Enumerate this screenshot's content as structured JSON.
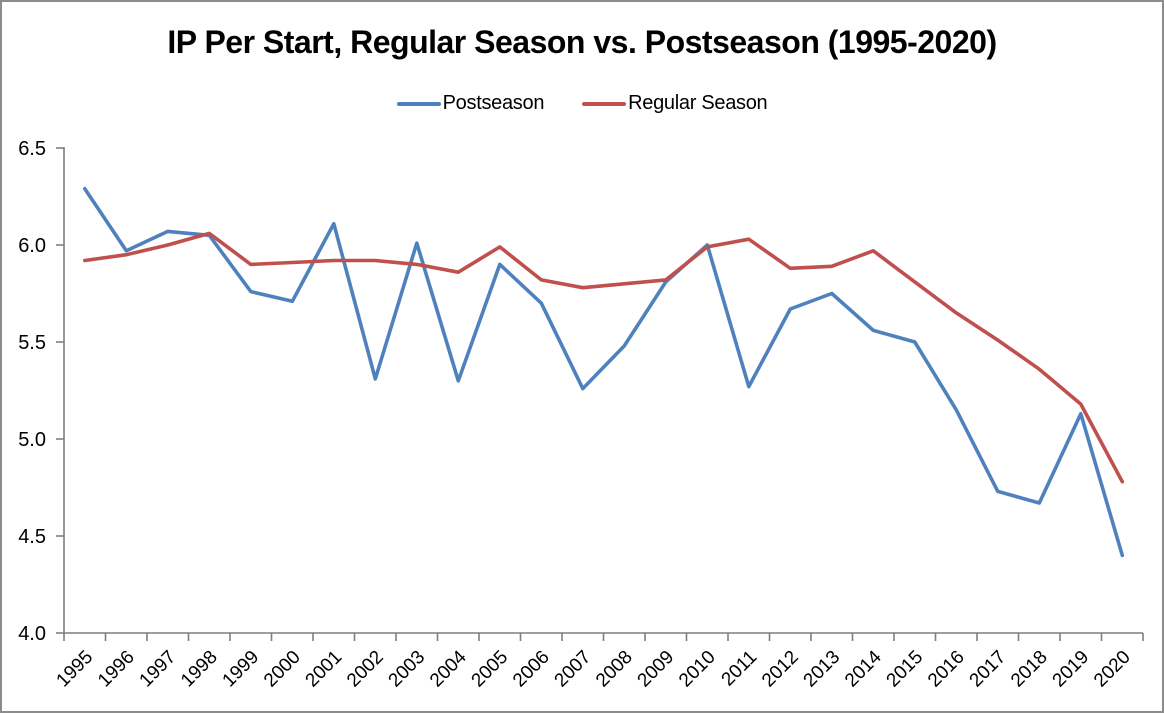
{
  "chart_data": {
    "type": "line",
    "title": "IP Per Start, Regular Season vs. Postseason (1995-2020)",
    "categories": [
      "1995",
      "1996",
      "1997",
      "1998",
      "1999",
      "2000",
      "2001",
      "2002",
      "2003",
      "2004",
      "2005",
      "2006",
      "2007",
      "2008",
      "2009",
      "2010",
      "2011",
      "2012",
      "2013",
      "2014",
      "2015",
      "2016",
      "2017",
      "2018",
      "2019",
      "2020"
    ],
    "series": [
      {
        "name": "Postseason",
        "color": "#4F81BD",
        "values": [
          6.29,
          5.97,
          6.07,
          6.05,
          5.76,
          5.71,
          6.11,
          5.31,
          6.01,
          5.3,
          5.9,
          5.7,
          5.26,
          5.48,
          5.81,
          6.0,
          5.27,
          5.67,
          5.75,
          5.56,
          5.5,
          5.15,
          4.73,
          4.67,
          5.13,
          4.4
        ]
      },
      {
        "name": "Regular Season",
        "color": "#C0504D",
        "values": [
          5.92,
          5.95,
          6.0,
          6.06,
          5.9,
          5.91,
          5.92,
          5.92,
          5.9,
          5.86,
          5.99,
          5.82,
          5.78,
          5.8,
          5.82,
          5.99,
          6.03,
          5.88,
          5.89,
          5.97,
          5.81,
          5.65,
          5.51,
          5.36,
          5.18,
          4.78
        ]
      }
    ],
    "xlabel": "",
    "ylabel": "",
    "ylim": [
      4.0,
      6.5
    ],
    "ytick_step": 0.5,
    "ytick_labels": [
      "4.0",
      "4.5",
      "5.0",
      "5.5",
      "6.0",
      "6.5"
    ],
    "grid": false,
    "legend_position": "top-center"
  },
  "colors": {
    "frame_border": "#8C8C8C",
    "axis": "#7F7F7F",
    "text": "#000000"
  }
}
